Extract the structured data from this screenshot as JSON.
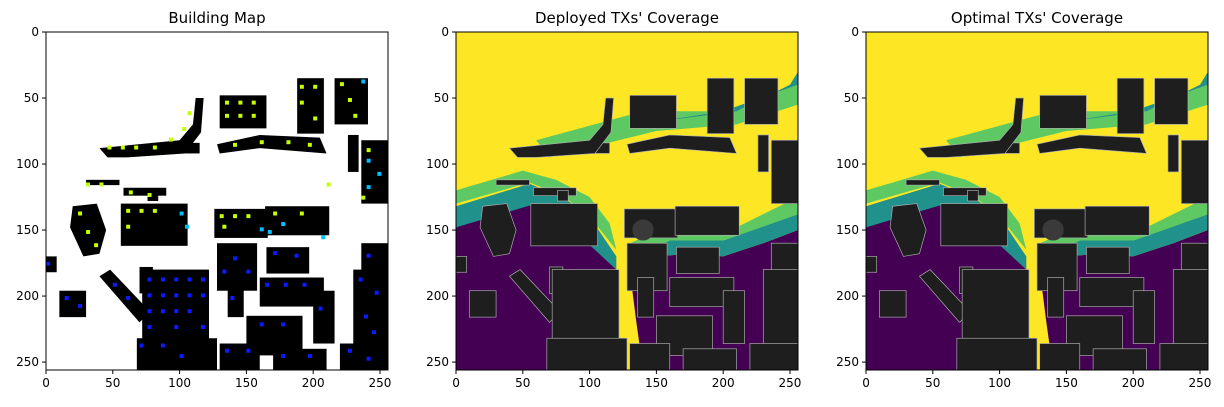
{
  "chart_data": [
    {
      "type": "heatmap",
      "title": "Building Map",
      "xlim": [
        0,
        256
      ],
      "ylim": [
        0,
        256
      ],
      "x_ticks": [
        0,
        50,
        100,
        150,
        200,
        250
      ],
      "y_ticks": [
        0,
        50,
        100,
        150,
        200,
        250
      ],
      "description_colors": {
        "background": "#ffffff",
        "building": "#000000",
        "tx_green": "#c6ff00",
        "tx_cyan": "#00bfff",
        "tx_blue": "#0a1bff"
      }
    },
    {
      "type": "heatmap",
      "title": "Deployed TXs' Coverage",
      "xlim": [
        0,
        256
      ],
      "ylim": [
        0,
        256
      ],
      "x_ticks": [
        0,
        50,
        100,
        150,
        200,
        250
      ],
      "y_ticks": [
        0,
        50,
        100,
        150,
        200,
        250
      ],
      "colormap": "viridis",
      "description_colors": {
        "high": "#fde725",
        "mid_high": "#5ec962",
        "mid": "#21918c",
        "low": "#440154",
        "building": "#1e1e1e"
      }
    },
    {
      "type": "heatmap",
      "title": "Optimal TXs' Coverage",
      "xlim": [
        0,
        256
      ],
      "ylim": [
        0,
        256
      ],
      "x_ticks": [
        0,
        50,
        100,
        150,
        200,
        250
      ],
      "y_ticks": [
        0,
        50,
        100,
        150,
        200,
        250
      ],
      "colormap": "viridis",
      "description_colors": {
        "high": "#fde725",
        "mid_high": "#5ec962",
        "mid": "#21918c",
        "low": "#440154",
        "building": "#1e1e1e"
      }
    }
  ]
}
